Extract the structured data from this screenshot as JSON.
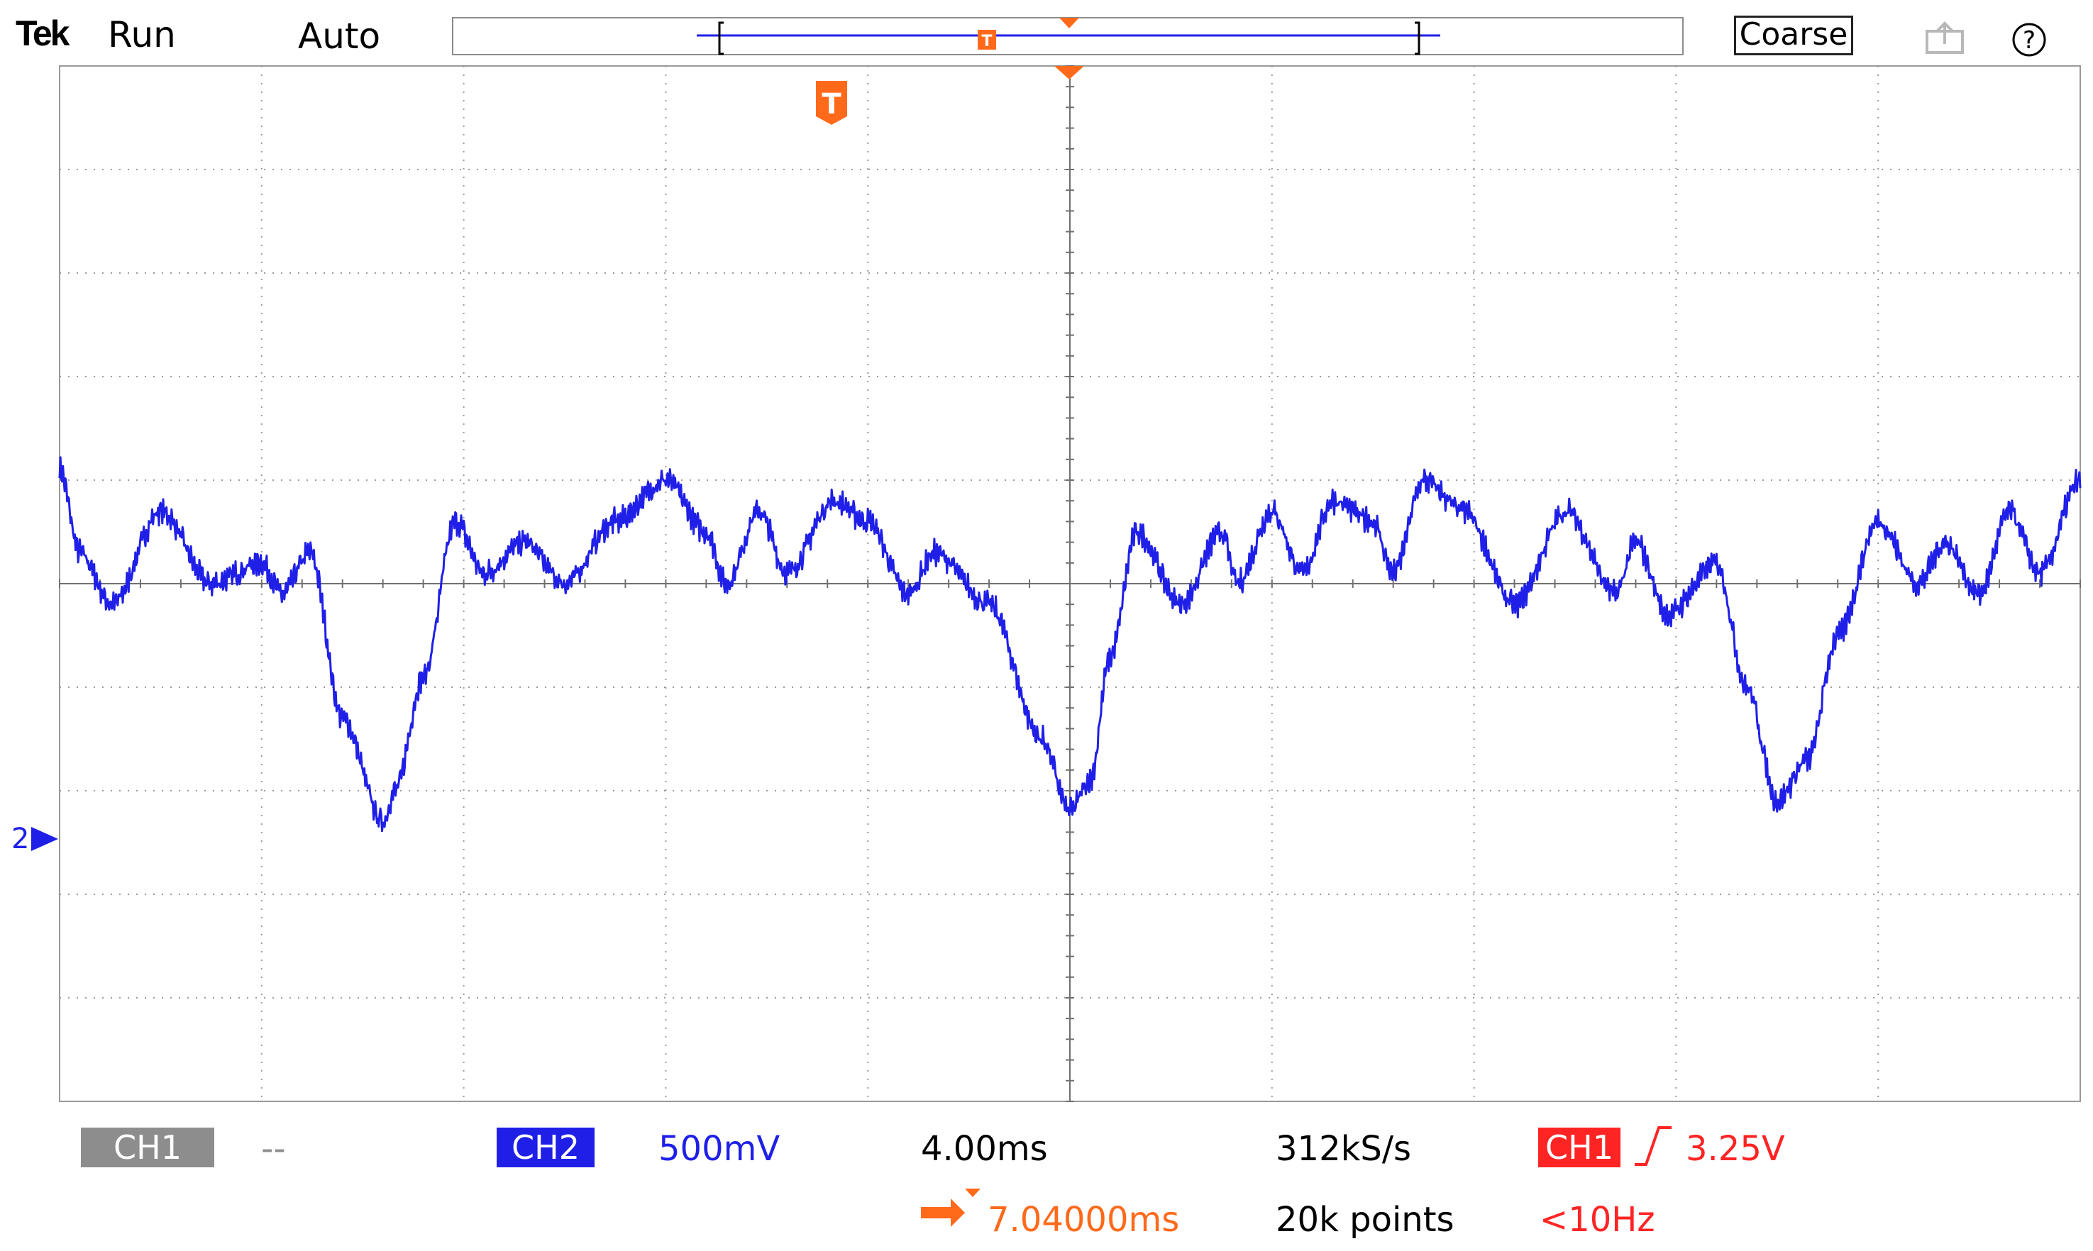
{
  "header": {
    "brand": "Tek",
    "acquisition_state": "Run",
    "trigger_mode": "Auto",
    "adjust_mode": "Coarse",
    "icons": {
      "export": "export-icon",
      "help": "help-icon"
    }
  },
  "screen": {
    "ch2_marker_label": "2",
    "trigger_marker_label": "T",
    "horizontal_divisions": 10,
    "vertical_divisions": 10
  },
  "status": {
    "ch1_label": "CH1",
    "ch1_value": "--",
    "ch2_label": "CH2",
    "ch2_scale": "500mV",
    "timebase": "4.00ms",
    "sample_rate": "312kS/s",
    "record_length": "20k points",
    "trigger_source": "CH1",
    "trigger_level": "3.25V",
    "trigger_frequency": "<10Hz",
    "horizontal_position": "7.04000ms"
  },
  "colors": {
    "ch1": "#8d8d8d",
    "ch2": "#1f1fe8",
    "trigger": "#ff2424",
    "position": "#ff6a1a",
    "grid": "#9a9a9a"
  },
  "chart_data": {
    "type": "line",
    "title": "",
    "xlabel": "",
    "ylabel": "",
    "x_unit": "div",
    "y_unit": "div relative to CH2 marker",
    "xlim": [
      0,
      10
    ],
    "ylim": [
      -2.5,
      7.5
    ],
    "series": [
      {
        "name": "CH2",
        "x": [
          0.0,
          0.1,
          0.26,
          0.5,
          0.75,
          1.0,
          1.1,
          1.24,
          1.4,
          1.6,
          1.66,
          1.8,
          1.96,
          2.1,
          2.3,
          2.5,
          2.75,
          3.0,
          3.2,
          3.3,
          3.46,
          3.6,
          3.83,
          4.0,
          4.2,
          4.33,
          4.6,
          4.86,
          5.0,
          5.1,
          5.2,
          5.33,
          5.55,
          5.75,
          5.83,
          6.0,
          6.15,
          6.3,
          6.5,
          6.6,
          6.75,
          6.95,
          7.2,
          7.46,
          7.7,
          7.8,
          7.96,
          8.2,
          8.35,
          8.5,
          8.65,
          8.8,
          9.0,
          9.2,
          9.33,
          9.5,
          9.65,
          9.8,
          10.0
        ],
        "y": [
          3.6,
          2.8,
          2.3,
          3.2,
          2.5,
          2.7,
          2.4,
          2.8,
          1.2,
          0.2,
          0.5,
          1.6,
          3.1,
          2.6,
          2.9,
          2.5,
          3.1,
          3.5,
          3.0,
          2.5,
          3.2,
          2.6,
          3.3,
          3.1,
          2.4,
          2.8,
          2.3,
          1.0,
          0.3,
          0.6,
          1.8,
          3.0,
          2.3,
          3.0,
          2.5,
          3.2,
          2.6,
          3.3,
          3.1,
          2.6,
          3.5,
          3.2,
          2.3,
          3.2,
          2.4,
          2.9,
          2.2,
          2.7,
          1.5,
          0.4,
          0.8,
          2.0,
          3.1,
          2.5,
          2.9,
          2.4,
          3.2,
          2.6,
          3.5
        ]
      }
    ],
    "grid": true,
    "ch2_ground_level": 0,
    "trigger_position_div": 3.83
  }
}
